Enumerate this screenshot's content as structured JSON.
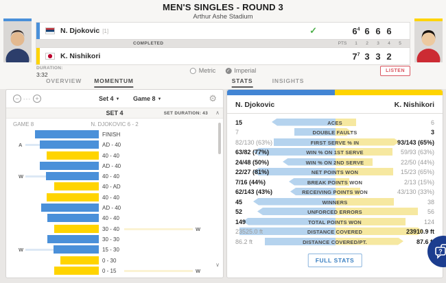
{
  "page": {
    "title": "MEN'S SINGLES - ROUND 3",
    "subtitle": "Arthur Ashe Stadium"
  },
  "scoreboard": {
    "status": "COMPLETED",
    "pts_label": "PTS",
    "set_columns": [
      "1",
      "2",
      "3",
      "4",
      "5"
    ],
    "players": [
      {
        "name": "N. Djokovic",
        "seed": "[1]",
        "flag": "serbia",
        "winner": true,
        "sets": [
          "6",
          "6",
          "6",
          "6",
          ""
        ],
        "tiebreaks": [
          "4",
          "",
          "",
          "",
          ""
        ]
      },
      {
        "name": "K. Nishikori",
        "seed": "",
        "flag": "japan",
        "winner": false,
        "sets": [
          "7",
          "3",
          "3",
          "2",
          ""
        ],
        "tiebreaks": [
          "7",
          "",
          "",
          "",
          ""
        ]
      }
    ],
    "duration_label": "DURATION:",
    "duration_value": "3:32",
    "units": {
      "options": [
        "Metric",
        "Imperial"
      ],
      "selected": "Imperial"
    },
    "listen_label": "LISTEN"
  },
  "tabs": [
    {
      "label": "OVERVIEW",
      "active": false
    },
    {
      "label": "MOMENTUM",
      "active": true
    },
    {
      "label": "STATS",
      "active": true
    },
    {
      "label": "INSIGHTS",
      "active": false
    }
  ],
  "momentum": {
    "set_selector": "Set 4",
    "game_selector": "Game 8",
    "set_title": "SET 4",
    "set_duration": "SET DURATION: 43",
    "game_label": "GAME 8",
    "game_summary": "N. DJOKOVIC 6 - 2",
    "bars": [
      {
        "label": "FINISH",
        "player": "p1",
        "length": 93
      },
      {
        "label": "AD - 40",
        "player": "p1",
        "length": 86,
        "marker": "A",
        "marker_side": "left"
      },
      {
        "label": "40 - 40",
        "player": "p2",
        "length": 76
      },
      {
        "label": "AD - 40",
        "player": "p1",
        "length": 86
      },
      {
        "label": "40 - 40",
        "player": "p1",
        "length": 77,
        "marker": "W",
        "marker_side": "left"
      },
      {
        "label": "40 - AD",
        "player": "p2",
        "length": 65
      },
      {
        "label": "40 - 40",
        "player": "p2",
        "length": 76
      },
      {
        "label": "AD - 40",
        "player": "p1",
        "length": 84
      },
      {
        "label": "40 - 40",
        "player": "p1",
        "length": 75
      },
      {
        "label": "30 - 40",
        "player": "p2",
        "length": 65,
        "marker": "W",
        "marker_side": "right"
      },
      {
        "label": "30 - 30",
        "player": "p1",
        "length": 75
      },
      {
        "label": "15 - 30",
        "player": "p1",
        "length": 66,
        "marker": "W",
        "marker_side": "left"
      },
      {
        "label": "0 - 30",
        "player": "p2",
        "length": 56
      },
      {
        "label": "0 - 15",
        "player": "p2",
        "length": 65,
        "marker": "W",
        "marker_side": "right"
      }
    ]
  },
  "stats": {
    "player1": "N. Djokovic",
    "player2": "K. Nishikori",
    "rows": [
      {
        "label": "ACES",
        "p1": "15",
        "p2": "6",
        "winner": "p1",
        "p1_bar": 0.62,
        "p2_bar": 0.2
      },
      {
        "label": "DOUBLE FAULTS",
        "p1": "7",
        "p2": "3",
        "winner": "p2",
        "p1_bar": 0.4,
        "p2_bar": 0.16
      },
      {
        "label": "FIRST SERVE % IN",
        "p1": "82/130 (63%)",
        "p2": "93/143 (65%)",
        "winner": "p2",
        "p1_bar": 0.6,
        "p2_bar": 0.62
      },
      {
        "label": "WIN % ON 1ST SERVE",
        "p1": "63/82 (77%)",
        "p2": "59/93 (63%)",
        "winner": "p1",
        "p1_bar": 0.8,
        "p2_bar": 0.55
      },
      {
        "label": "WIN % ON 2ND SERVE",
        "p1": "24/48 (50%)",
        "p2": "22/50 (44%)",
        "winner": "p1",
        "p1_bar": 0.51,
        "p2_bar": 0.36
      },
      {
        "label": "NET POINTS WON",
        "p1": "22/27 (81%)",
        "p2": "15/23 (65%)",
        "winner": "p1",
        "p1_bar": 0.8,
        "p2_bar": 0.56
      },
      {
        "label": "BREAK POINTS WON",
        "p1": "7/16 (44%)",
        "p2": "2/13 (15%)",
        "winner": "p1",
        "p1_bar": 0.45,
        "p2_bar": 0.13
      },
      {
        "label": "RECEIVING POINTS WON",
        "p1": "62/143 (43%)",
        "p2": "43/130 (33%)",
        "winner": "p1",
        "p1_bar": 0.44,
        "p2_bar": 0.24
      },
      {
        "label": "WINNERS",
        "p1": "45",
        "p2": "38",
        "winner": "p1",
        "p1_bar": 0.8,
        "p2_bar": 0.57
      },
      {
        "label": "UNFORCED ERRORS",
        "p1": "52",
        "p2": "56",
        "winner": "p1",
        "p1_bar": 0.76,
        "p2_bar": 0.8
      },
      {
        "label": "TOTAL POINTS WON",
        "p1": "149",
        "p2": "124",
        "winner": "p1",
        "p1_bar": 0.9,
        "p2_bar": 0.68
      },
      {
        "label": "DISTANCE COVERED",
        "p1": "23525.0 ft",
        "p2": "23910.9 ft",
        "winner": "p2",
        "p1_bar": 0.93,
        "p2_bar": 0.85
      },
      {
        "label": "DISTANCE COVERED/PT.",
        "p1": "86.2 ft",
        "p2": "87.6 ft",
        "winner": "p2",
        "p1_bar": 0.69,
        "p2_bar": 0.66
      }
    ],
    "full_stats_label": "FULL STATS"
  },
  "colors": {
    "p1_blue": "#4a90d9",
    "p2_yellow": "#ffd400",
    "stat_blue": "#b5d3ee",
    "stat_yellow": "#f6e8a0",
    "winner_green": "#4db04a",
    "listen_red": "#d9545e",
    "link_blue": "#3a7fc1",
    "chat_navy": "#1c3d8f"
  }
}
